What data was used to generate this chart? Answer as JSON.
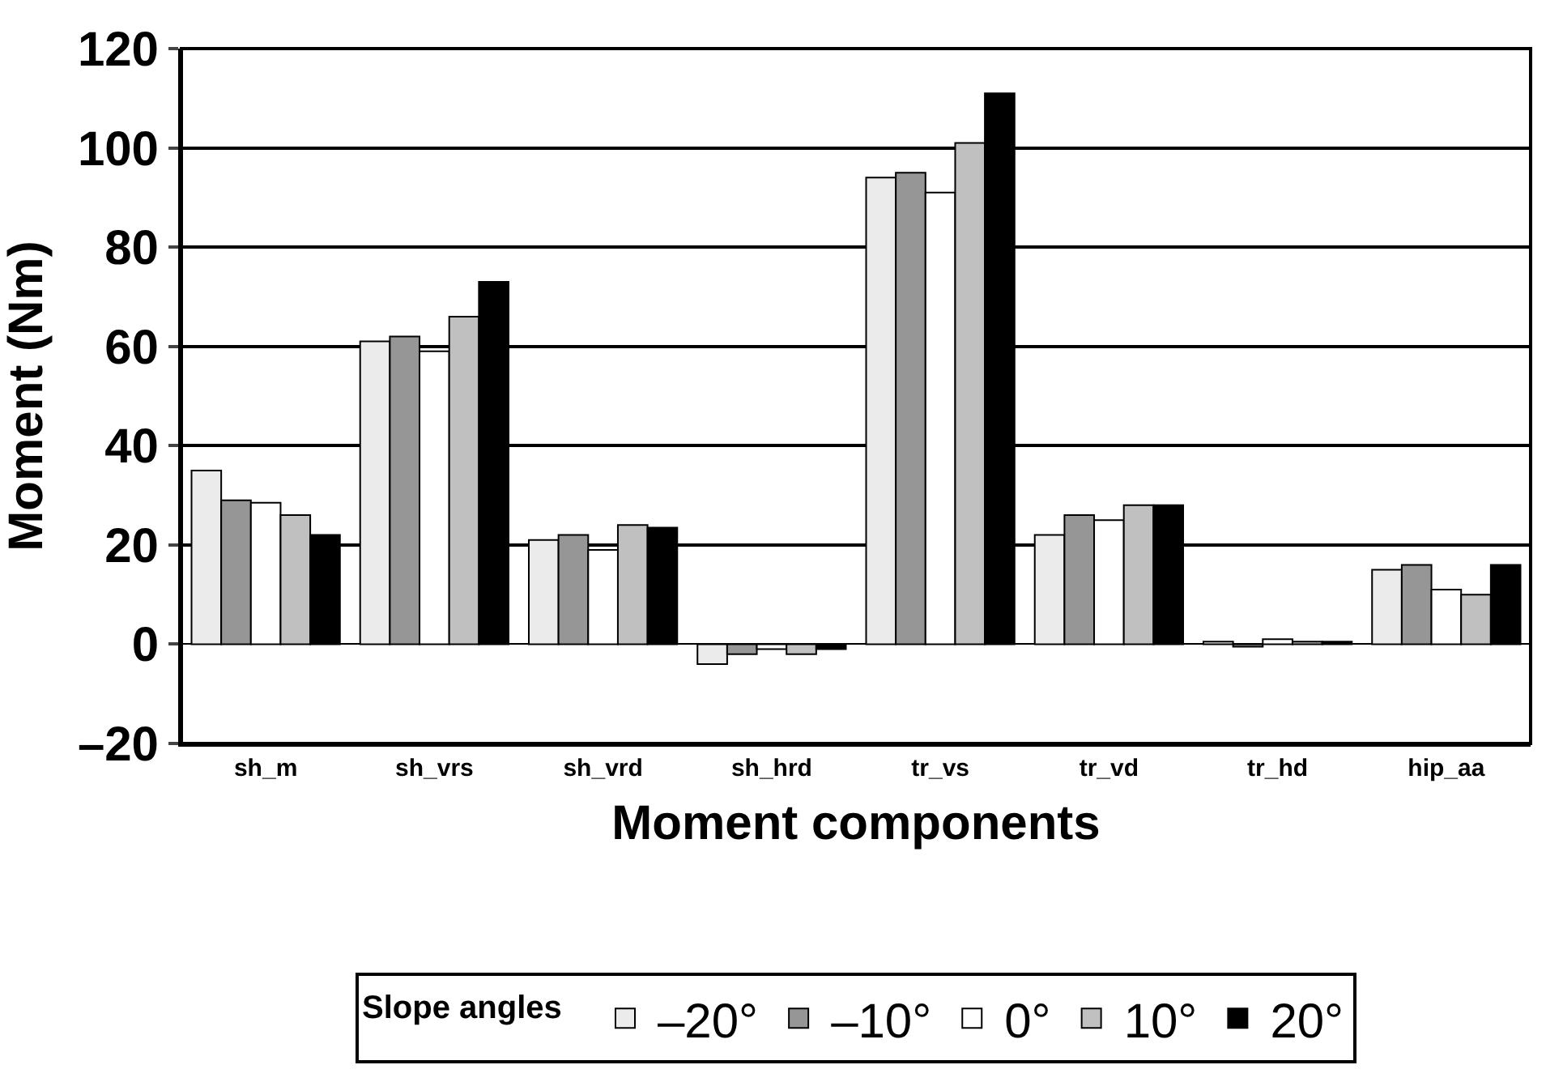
{
  "chart_data": {
    "type": "bar",
    "xlabel": "Moment components",
    "ylabel": "Moment (Nm)",
    "legend_title": "Slope angles",
    "categories": [
      "sh_m",
      "sh_vrs",
      "sh_vrd",
      "sh_hrd",
      "tr_vs",
      "tr_vd",
      "tr_hd",
      "hip_aa"
    ],
    "series": [
      {
        "name": "–20°",
        "color": "#ebebeb",
        "values": [
          35,
          61,
          21,
          -4,
          94,
          22,
          0.5,
          15
        ]
      },
      {
        "name": "–10°",
        "color": "#969696",
        "values": [
          29,
          62,
          22,
          -2,
          95,
          26,
          -0.5,
          16
        ]
      },
      {
        "name": "0°",
        "color": "#ffffff",
        "values": [
          28.5,
          59,
          19,
          -1,
          91,
          25,
          1,
          11
        ]
      },
      {
        "name": "10°",
        "color": "#c0c0c0",
        "values": [
          26,
          66,
          24,
          -2,
          101,
          28,
          0.5,
          10
        ]
      },
      {
        "name": "20°",
        "color": "#000000",
        "values": [
          22,
          73,
          23.5,
          -1,
          111,
          28,
          0.5,
          16
        ]
      }
    ],
    "ylim": [
      -20,
      120
    ],
    "yticks": [
      {
        "value": -20,
        "label": "–20"
      },
      0,
      20,
      40,
      60,
      80,
      100,
      120
    ],
    "grid": "y",
    "legend": "bottom"
  }
}
